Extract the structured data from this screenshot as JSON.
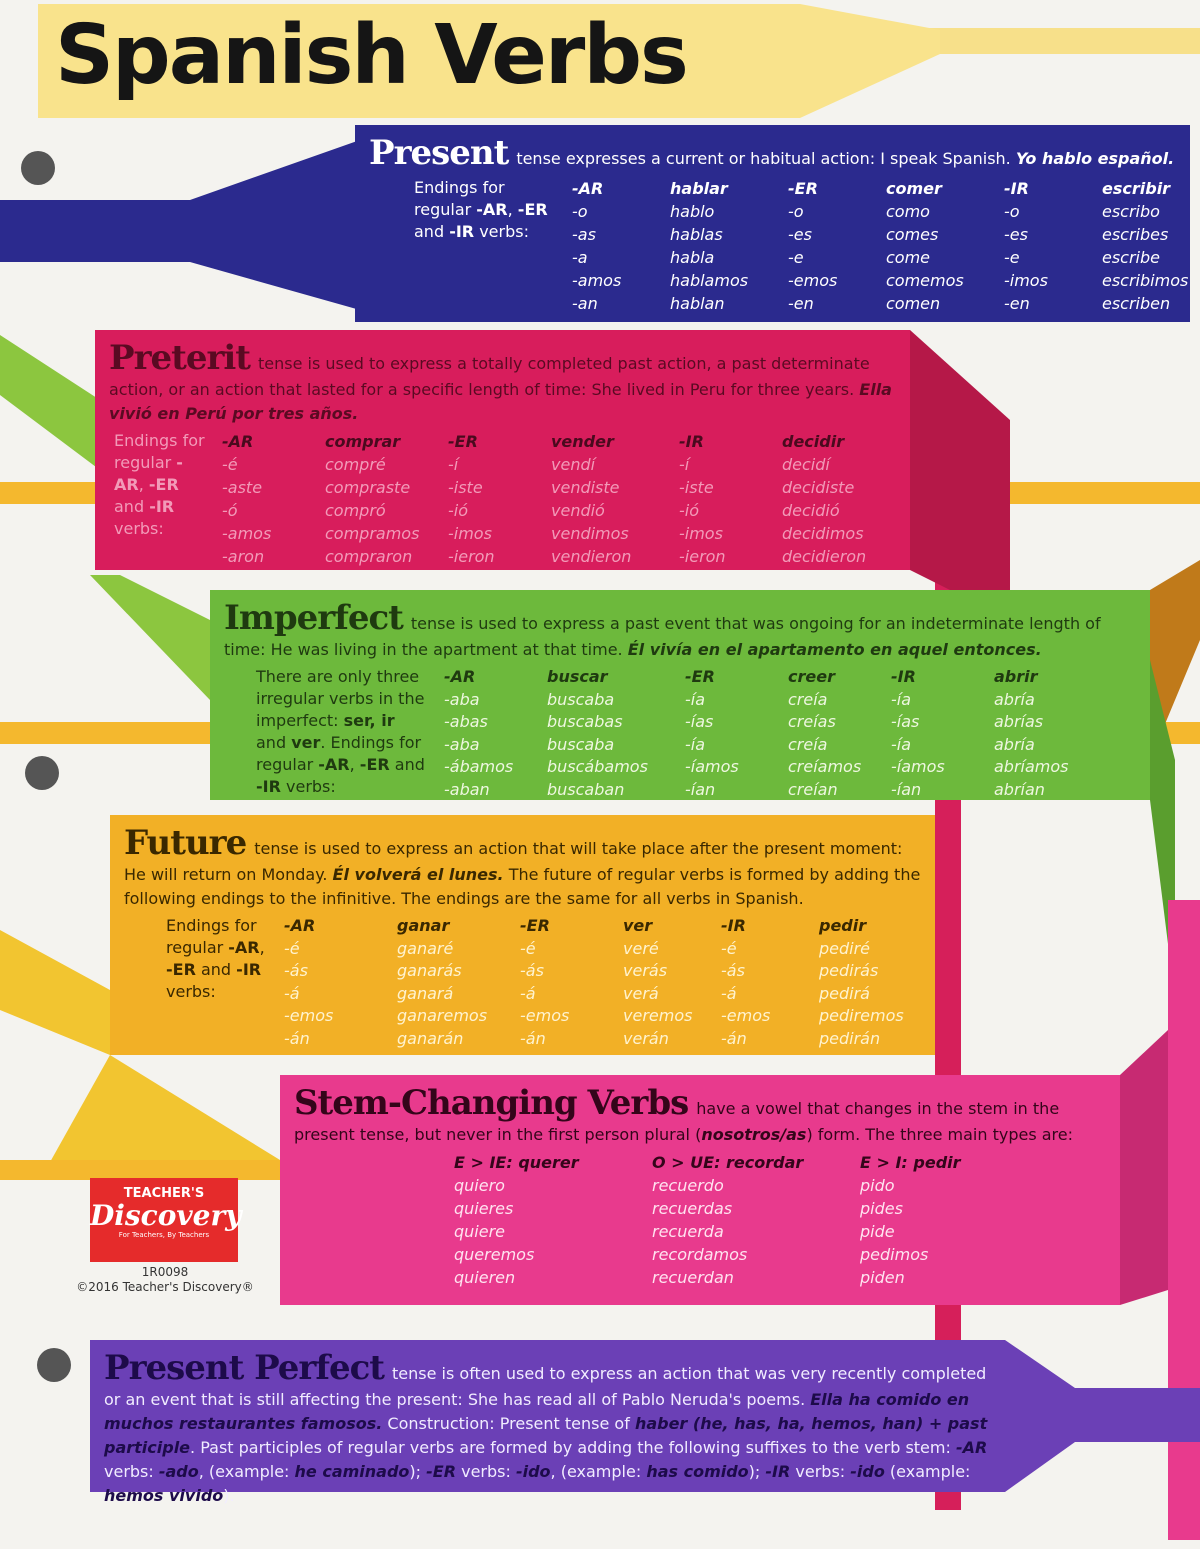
{
  "title": "Spanish Verbs",
  "sections": [
    {
      "heading": "Present",
      "description": [
        "tense expresses a current or habitual action: I speak Spanish. ",
        "Yo hablo español."
      ],
      "intro": [
        "Endings for regular ",
        "-AR",
        ", ",
        "-ER",
        " and ",
        "-IR",
        " verbs:"
      ],
      "columns": [
        {
          "header": "-AR",
          "forms": [
            "-o",
            "-as",
            "-a",
            "-amos",
            "-an"
          ]
        },
        {
          "header": "hablar",
          "forms": [
            "hablo",
            "hablas",
            "habla",
            "hablamos",
            "hablan"
          ]
        },
        {
          "header": "-ER",
          "forms": [
            "-o",
            "-es",
            "-e",
            "-emos",
            "-en"
          ]
        },
        {
          "header": "comer",
          "forms": [
            "como",
            "comes",
            "come",
            "comemos",
            "comen"
          ]
        },
        {
          "header": "-IR",
          "forms": [
            "-o",
            "-es",
            "-e",
            "-imos",
            "-en"
          ]
        },
        {
          "header": "escribir",
          "forms": [
            "escribo",
            "escribes",
            "escribe",
            "escribimos",
            "escriben"
          ]
        }
      ]
    },
    {
      "heading": "Preterit",
      "description": [
        "tense is used to express a totally completed past action, a past determinate action, or an action that lasted for a specific length of time: She lived in Peru for three years. ",
        "Ella vivió en Perú por tres años."
      ],
      "intro": [
        "Endings for regular ",
        "-AR",
        ", ",
        "-ER",
        " and ",
        "-IR",
        " verbs:"
      ],
      "columns": [
        {
          "header": "-AR",
          "forms": [
            "-é",
            "-aste",
            "-ó",
            "-amos",
            "-aron"
          ]
        },
        {
          "header": "comprar",
          "forms": [
            "compré",
            "compraste",
            "compró",
            "compramos",
            "compraron"
          ]
        },
        {
          "header": "-ER",
          "forms": [
            "-í",
            "-iste",
            "-ió",
            "-imos",
            "-ieron"
          ]
        },
        {
          "header": "vender",
          "forms": [
            "vendí",
            "vendiste",
            "vendió",
            "vendimos",
            "vendieron"
          ]
        },
        {
          "header": "-IR",
          "forms": [
            "-í",
            "-iste",
            "-ió",
            "-imos",
            "-ieron"
          ]
        },
        {
          "header": "decidir",
          "forms": [
            "decidí",
            "decidiste",
            "decidió",
            "decidimos",
            "decidieron"
          ]
        }
      ]
    },
    {
      "heading": "Imperfect",
      "description": [
        "tense is used to express a past event that was ongoing for an indeterminate length of time: He was living in the apartment at that time. ",
        "Él vivía en el apartamento en aquel entonces."
      ],
      "intro": [
        "There are only three irregular verbs in the imperfect: ",
        "ser, ir",
        " and ",
        "ver",
        ". Endings for regular ",
        "-AR",
        ", ",
        "-ER",
        " and ",
        "-IR",
        " verbs:"
      ],
      "columns": [
        {
          "header": "-AR",
          "forms": [
            "-aba",
            "-abas",
            "-aba",
            "-ábamos",
            "-aban"
          ]
        },
        {
          "header": "buscar",
          "forms": [
            "buscaba",
            "buscabas",
            "buscaba",
            "buscábamos",
            "buscaban"
          ]
        },
        {
          "header": "-ER",
          "forms": [
            "-ía",
            "-ías",
            "-ía",
            "-íamos",
            "-ían"
          ]
        },
        {
          "header": "creer",
          "forms": [
            "creía",
            "creías",
            "creía",
            "creíamos",
            "creían"
          ]
        },
        {
          "header": "-IR",
          "forms": [
            "-ía",
            "-ías",
            "-ía",
            "-íamos",
            "-ían"
          ]
        },
        {
          "header": "abrir",
          "forms": [
            "abría",
            "abrías",
            "abría",
            "abríamos",
            "abrían"
          ]
        }
      ]
    },
    {
      "heading": "Future",
      "description": [
        "tense is used to express an action that will take place after the present moment: He will return on Monday. ",
        "Él volverá el lunes.",
        " The future of regular verbs is formed by adding the following endings to the infinitive. The endings are the same for all verbs in Spanish."
      ],
      "intro": [
        "Endings for regular ",
        "-AR",
        ", ",
        "-ER",
        " and ",
        "-IR",
        " verbs:"
      ],
      "columns": [
        {
          "header": "-AR",
          "forms": [
            "-é",
            "-ás",
            "-á",
            "-emos",
            "-án"
          ]
        },
        {
          "header": "ganar",
          "forms": [
            "ganaré",
            "ganarás",
            "ganará",
            "ganaremos",
            "ganarán"
          ]
        },
        {
          "header": "-ER",
          "forms": [
            "-é",
            "-ás",
            "-á",
            "-emos",
            "-án"
          ]
        },
        {
          "header": "ver",
          "forms": [
            "veré",
            "verás",
            "verá",
            "veremos",
            "verán"
          ]
        },
        {
          "header": "-IR",
          "forms": [
            "-é",
            "-ás",
            "-á",
            "-emos",
            "-án"
          ]
        },
        {
          "header": "pedir",
          "forms": [
            "pediré",
            "pedirás",
            "pedirá",
            "pediremos",
            "pedirán"
          ]
        }
      ]
    },
    {
      "heading": "Stem-Changing Verbs",
      "description": [
        "have a vowel that changes in the stem in the present tense, but never in the first person plural (",
        "nosotros/as",
        ") form. The three main types are:"
      ],
      "columns": [
        {
          "header": "E > IE: querer",
          "forms": [
            "quiero",
            "quieres",
            "quiere",
            "queremos",
            "quieren"
          ]
        },
        {
          "header": "O > UE: recordar",
          "forms": [
            "recuerdo",
            "recuerdas",
            "recuerda",
            "recordamos",
            "recuerdan"
          ]
        },
        {
          "header": "E > I: pedir",
          "forms": [
            "pido",
            "pides",
            "pide",
            "pedimos",
            "piden"
          ]
        }
      ]
    },
    {
      "heading": "Present Perfect",
      "description": [
        "tense is often used to express an action that was very recently completed or an event that is still affecting the present: She has read all of Pablo Neruda's poems. ",
        "Ella ha comido en muchos restaurantes famosos.",
        " Construction: Present tense of ",
        "haber (he, has, ha, hemos, han) + past participle",
        ". Past participles of regular verbs are formed by adding the following suffixes to the verb stem: ",
        "-AR",
        " verbs: ",
        "-ado",
        ", (example: ",
        "he caminado",
        "); ",
        "-ER",
        " verbs: ",
        "-ido",
        ", (example: ",
        "has comido",
        "); ",
        "-IR",
        " verbs: ",
        "-ido",
        " (example: ",
        "hemos vivido",
        ")."
      ]
    }
  ],
  "publisher": {
    "logo_top": "TEACHER'S",
    "logo_main": "Discovery",
    "logo_tagline": "For Teachers, By Teachers",
    "product_code": "1R0098",
    "copyright": "©2016 Teacher's Discovery®"
  }
}
